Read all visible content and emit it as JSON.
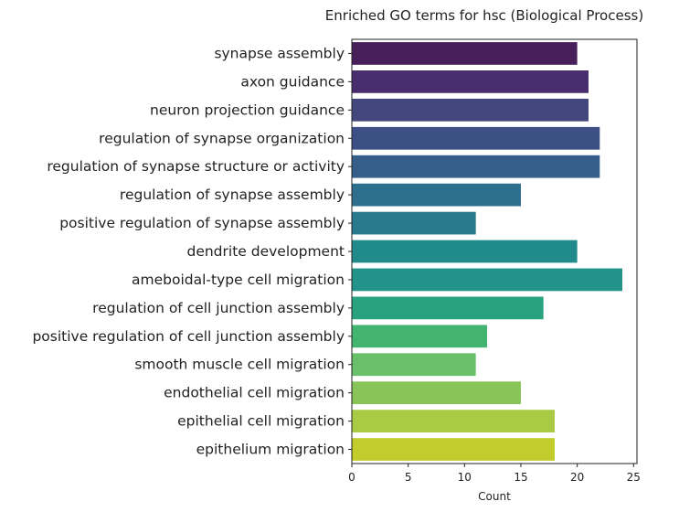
{
  "chart_data": {
    "type": "bar",
    "orientation": "horizontal",
    "title": "Enriched GO terms for hsc (Biological Process)",
    "xlabel": "Count",
    "ylabel": "",
    "xlim": [
      0,
      25.3
    ],
    "xticks": [
      "0",
      "5",
      "10",
      "15",
      "20",
      "25"
    ],
    "grid": false,
    "categories": [
      "synapse assembly",
      "axon guidance",
      "neuron projection guidance",
      "regulation of synapse organization",
      "regulation of synapse structure or activity",
      "regulation of synapse assembly",
      "positive regulation of synapse assembly",
      "dendrite development",
      "ameboidal-type cell migration",
      "regulation of cell junction assembly",
      "positive regulation of cell junction assembly",
      "smooth muscle cell migration",
      "endothelial cell migration",
      "epithelial cell migration",
      "epithelium migration"
    ],
    "values": [
      20,
      21,
      21,
      22,
      22,
      15,
      11,
      20,
      24,
      17,
      12,
      11,
      15,
      18,
      18
    ],
    "colors": [
      "#481f5a",
      "#482e6e",
      "#44477d",
      "#3c5085",
      "#355e8a",
      "#2e6f8d",
      "#2a7a8d",
      "#218a8a",
      "#21938a",
      "#28a37f",
      "#43b570",
      "#6ac06a",
      "#89c459",
      "#a9ca44",
      "#c2cd2d"
    ]
  }
}
